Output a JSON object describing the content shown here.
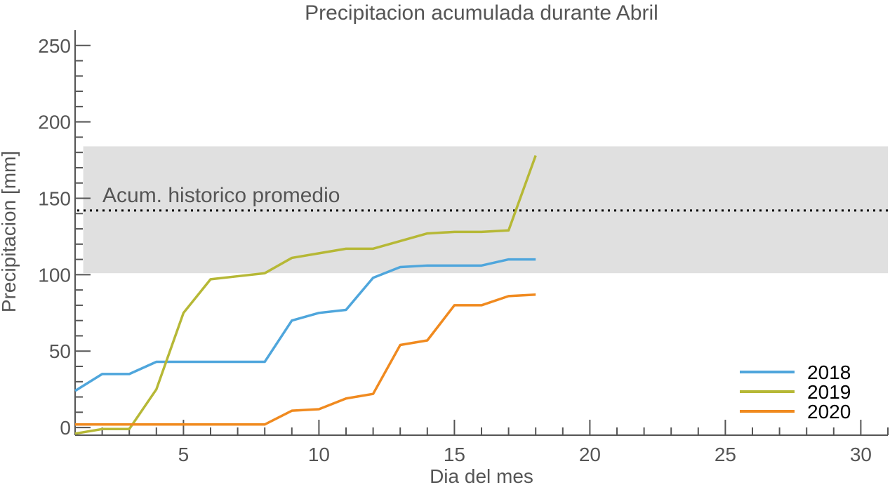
{
  "chart_data": {
    "type": "line",
    "title": "Precipitacion acumulada durante Abril",
    "xlabel": "Dia del mes",
    "ylabel": "Precipitacion [mm]",
    "xlim": [
      1,
      31
    ],
    "ylim": [
      -5,
      260
    ],
    "xticks": [
      5,
      10,
      15,
      20,
      25,
      30
    ],
    "yticks": [
      0,
      50,
      100,
      150,
      200,
      250
    ],
    "grid": false,
    "legend_position": "bottom-right",
    "band": {
      "label": "Acum. historico promedio",
      "ymin": 101,
      "ymax": 184,
      "mean": 142,
      "xmin": 1.3,
      "color": "#e0e0e0"
    },
    "series": [
      {
        "name": "2018",
        "color": "#4fa6dc",
        "x": [
          1,
          2,
          3,
          4,
          5,
          6,
          7,
          8,
          9,
          10,
          11,
          12,
          13,
          14,
          15,
          16,
          17,
          18
        ],
        "values": [
          24,
          35,
          35,
          43,
          43,
          43,
          43,
          43,
          70,
          75,
          77,
          98,
          105,
          106,
          106,
          106,
          110,
          110
        ]
      },
      {
        "name": "2019",
        "color": "#b6b836",
        "x": [
          1,
          2,
          3,
          4,
          5,
          6,
          7,
          8,
          9,
          10,
          11,
          12,
          13,
          14,
          15,
          16,
          17,
          18
        ],
        "values": [
          -4,
          -1,
          -1,
          25,
          75,
          97,
          99,
          101,
          111,
          114,
          117,
          117,
          122,
          127,
          128,
          128,
          129,
          178
        ]
      },
      {
        "name": "2020",
        "color": "#f08a1f",
        "x": [
          1,
          2,
          3,
          4,
          5,
          6,
          7,
          8,
          9,
          10,
          11,
          12,
          13,
          14,
          15,
          16,
          17,
          18
        ],
        "values": [
          2,
          2,
          2,
          2,
          2,
          2,
          2,
          2,
          11,
          12,
          19,
          22,
          54,
          57,
          80,
          80,
          86,
          87
        ]
      }
    ]
  }
}
